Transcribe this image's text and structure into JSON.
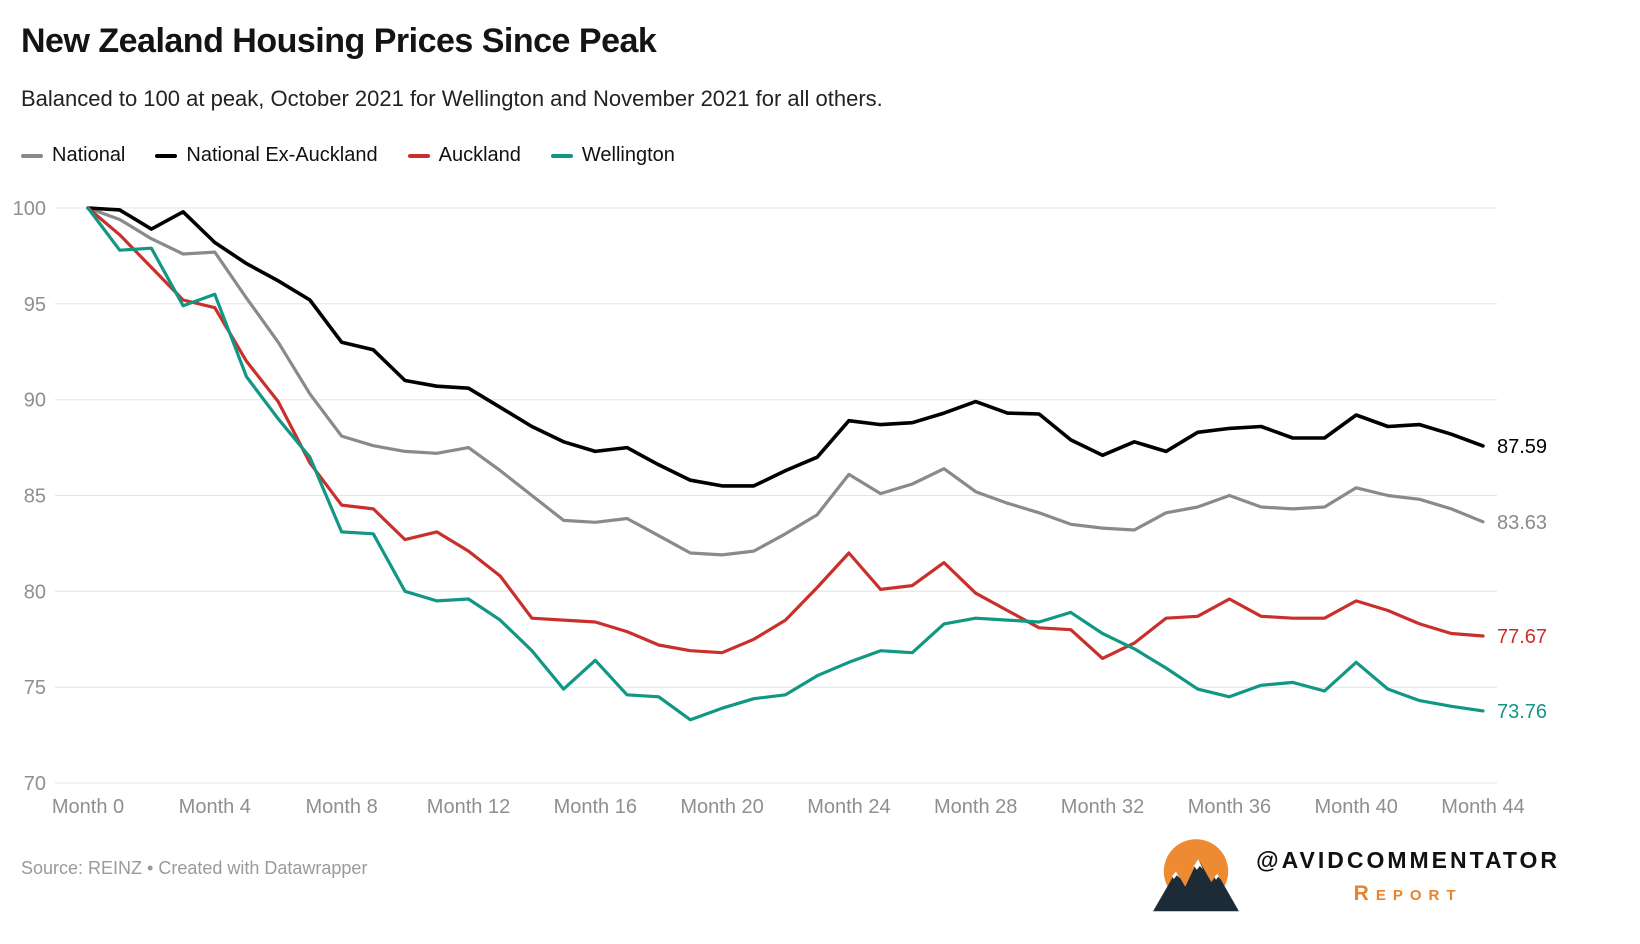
{
  "header": {
    "title": "New Zealand Housing Prices Since Peak",
    "subtitle": "Balanced to 100 at peak, October 2021 for Wellington and November 2021 for all others."
  },
  "legend": [
    {
      "label": "National",
      "color": "#8a8a8a"
    },
    {
      "label": "National Ex-Auckland",
      "color": "#000000"
    },
    {
      "label": "Auckland",
      "color": "#c9302b"
    },
    {
      "label": "Wellington",
      "color": "#119784"
    }
  ],
  "chart_data": {
    "type": "line",
    "title": "New Zealand Housing Prices Since Peak",
    "subtitle": "Balanced to 100 at peak, October 2021 for Wellington and November 2021 for all others.",
    "x_max": 44,
    "x_tick_months": [
      0,
      4,
      8,
      12,
      16,
      20,
      24,
      28,
      32,
      36,
      40,
      44
    ],
    "x_tick_labels": [
      "Month 0",
      "Month 4",
      "Month 8",
      "Month 12",
      "Month 16",
      "Month 20",
      "Month 24",
      "Month 28",
      "Month 32",
      "Month 36",
      "Month 40",
      "Month 44"
    ],
    "ylim": [
      70,
      100
    ],
    "y_ticks": [
      70,
      75,
      80,
      85,
      90,
      95,
      100
    ],
    "grid": "horizontal",
    "legend_position": "top",
    "axis_color": "#8f8f8f",
    "grid_color": "#e4e4e4",
    "series": [
      {
        "name": "National",
        "color": "#8a8a8a",
        "end_label": "83.63",
        "values": [
          100,
          99.4,
          98.4,
          97.6,
          97.7,
          95.3,
          93.0,
          90.3,
          88.1,
          87.6,
          87.3,
          87.2,
          87.5,
          86.3,
          85.0,
          83.7,
          83.6,
          83.8,
          82.9,
          82.0,
          81.9,
          82.1,
          83.0,
          84.0,
          86.1,
          85.1,
          85.6,
          86.4,
          85.2,
          84.6,
          84.1,
          83.5,
          83.3,
          83.2,
          84.1,
          84.4,
          85.0,
          84.4,
          84.3,
          84.4,
          85.4,
          85.0,
          84.8,
          84.3,
          83.63
        ]
      },
      {
        "name": "National Ex-Auckland",
        "color": "#000000",
        "end_label": "87.59",
        "values": [
          100,
          99.9,
          98.9,
          99.8,
          98.2,
          97.1,
          96.2,
          95.2,
          93.0,
          92.6,
          91.0,
          90.7,
          90.6,
          89.6,
          88.6,
          87.8,
          87.3,
          87.5,
          86.6,
          85.8,
          85.5,
          85.5,
          86.3,
          87.0,
          88.9,
          88.7,
          88.8,
          89.3,
          89.9,
          89.3,
          89.25,
          87.9,
          87.1,
          87.8,
          87.3,
          88.3,
          88.5,
          88.6,
          88.0,
          88.0,
          89.2,
          88.6,
          88.7,
          88.2,
          87.59
        ]
      },
      {
        "name": "Auckland",
        "color": "#c9302b",
        "end_label": "77.67",
        "values": [
          100,
          98.6,
          96.9,
          95.2,
          94.8,
          92.0,
          89.9,
          86.7,
          84.5,
          84.3,
          82.7,
          83.1,
          82.1,
          80.8,
          78.6,
          78.5,
          78.4,
          77.9,
          77.2,
          76.9,
          76.8,
          77.5,
          78.5,
          80.2,
          82.0,
          80.1,
          80.3,
          81.5,
          79.9,
          79.0,
          78.1,
          78.0,
          76.5,
          77.3,
          78.6,
          78.7,
          79.6,
          78.7,
          78.6,
          78.6,
          79.5,
          79.0,
          78.3,
          77.8,
          77.67
        ]
      },
      {
        "name": "Wellington",
        "color": "#119784",
        "end_label": "73.76",
        "values": [
          100,
          97.8,
          97.9,
          94.9,
          95.5,
          91.2,
          89.0,
          87.0,
          83.1,
          83.0,
          80.0,
          79.5,
          79.6,
          78.5,
          76.9,
          74.9,
          76.4,
          74.6,
          74.5,
          73.3,
          73.9,
          74.4,
          74.6,
          75.6,
          76.3,
          76.9,
          76.8,
          78.3,
          78.6,
          78.5,
          78.4,
          78.9,
          77.8,
          77.0,
          76.0,
          74.9,
          74.5,
          75.1,
          75.25,
          74.8,
          76.3,
          74.9,
          74.3,
          74.0,
          73.76
        ]
      }
    ]
  },
  "footer": {
    "source": "Source: REINZ • Created with Datawrapper",
    "brand_handle": "@AVIDCOMMENTATOR",
    "brand_sub": "Report",
    "brand_orange": "#e8832c",
    "logo_orange": "#ee8a31",
    "logo_navy": "#1d2b36"
  }
}
